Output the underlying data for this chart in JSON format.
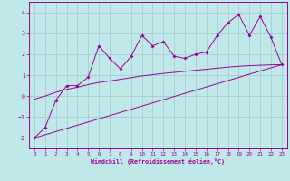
{
  "xlabel": "Windchill (Refroidissement éolien,°C)",
  "bg_color": "#c0e8e8",
  "grid_color": "#a0c8c8",
  "line_color": "#990099",
  "xlim": [
    -0.5,
    23.5
  ],
  "ylim": [
    -2.5,
    4.5
  ],
  "xticks": [
    0,
    1,
    2,
    3,
    4,
    5,
    6,
    7,
    8,
    9,
    10,
    11,
    12,
    13,
    14,
    15,
    16,
    17,
    18,
    19,
    20,
    21,
    22,
    23
  ],
  "yticks": [
    -2,
    -1,
    0,
    1,
    2,
    3,
    4
  ],
  "line1_x": [
    0,
    1,
    2,
    3,
    4,
    5,
    6,
    7,
    8,
    9,
    10,
    11,
    12,
    13,
    14,
    15,
    16,
    17,
    18,
    19,
    20,
    21,
    22,
    23
  ],
  "line1_y": [
    -2.0,
    -1.5,
    -0.2,
    0.5,
    0.5,
    0.9,
    2.4,
    1.8,
    1.3,
    1.9,
    2.9,
    2.4,
    2.6,
    1.9,
    1.8,
    2.0,
    2.1,
    2.9,
    3.5,
    3.9,
    2.9,
    3.8,
    2.8,
    1.5
  ],
  "line2_x": [
    0,
    23
  ],
  "line2_y": [
    -2.0,
    1.5
  ],
  "line3_x": [
    0,
    1,
    2,
    3,
    4,
    5,
    6,
    7,
    8,
    9,
    10,
    11,
    12,
    13,
    14,
    15,
    16,
    17,
    18,
    19,
    20,
    21,
    22,
    23
  ],
  "line3_y": [
    -0.15,
    0.0,
    0.18,
    0.32,
    0.42,
    0.55,
    0.65,
    0.72,
    0.8,
    0.88,
    0.96,
    1.02,
    1.08,
    1.13,
    1.18,
    1.23,
    1.28,
    1.33,
    1.38,
    1.42,
    1.45,
    1.47,
    1.49,
    1.5
  ]
}
